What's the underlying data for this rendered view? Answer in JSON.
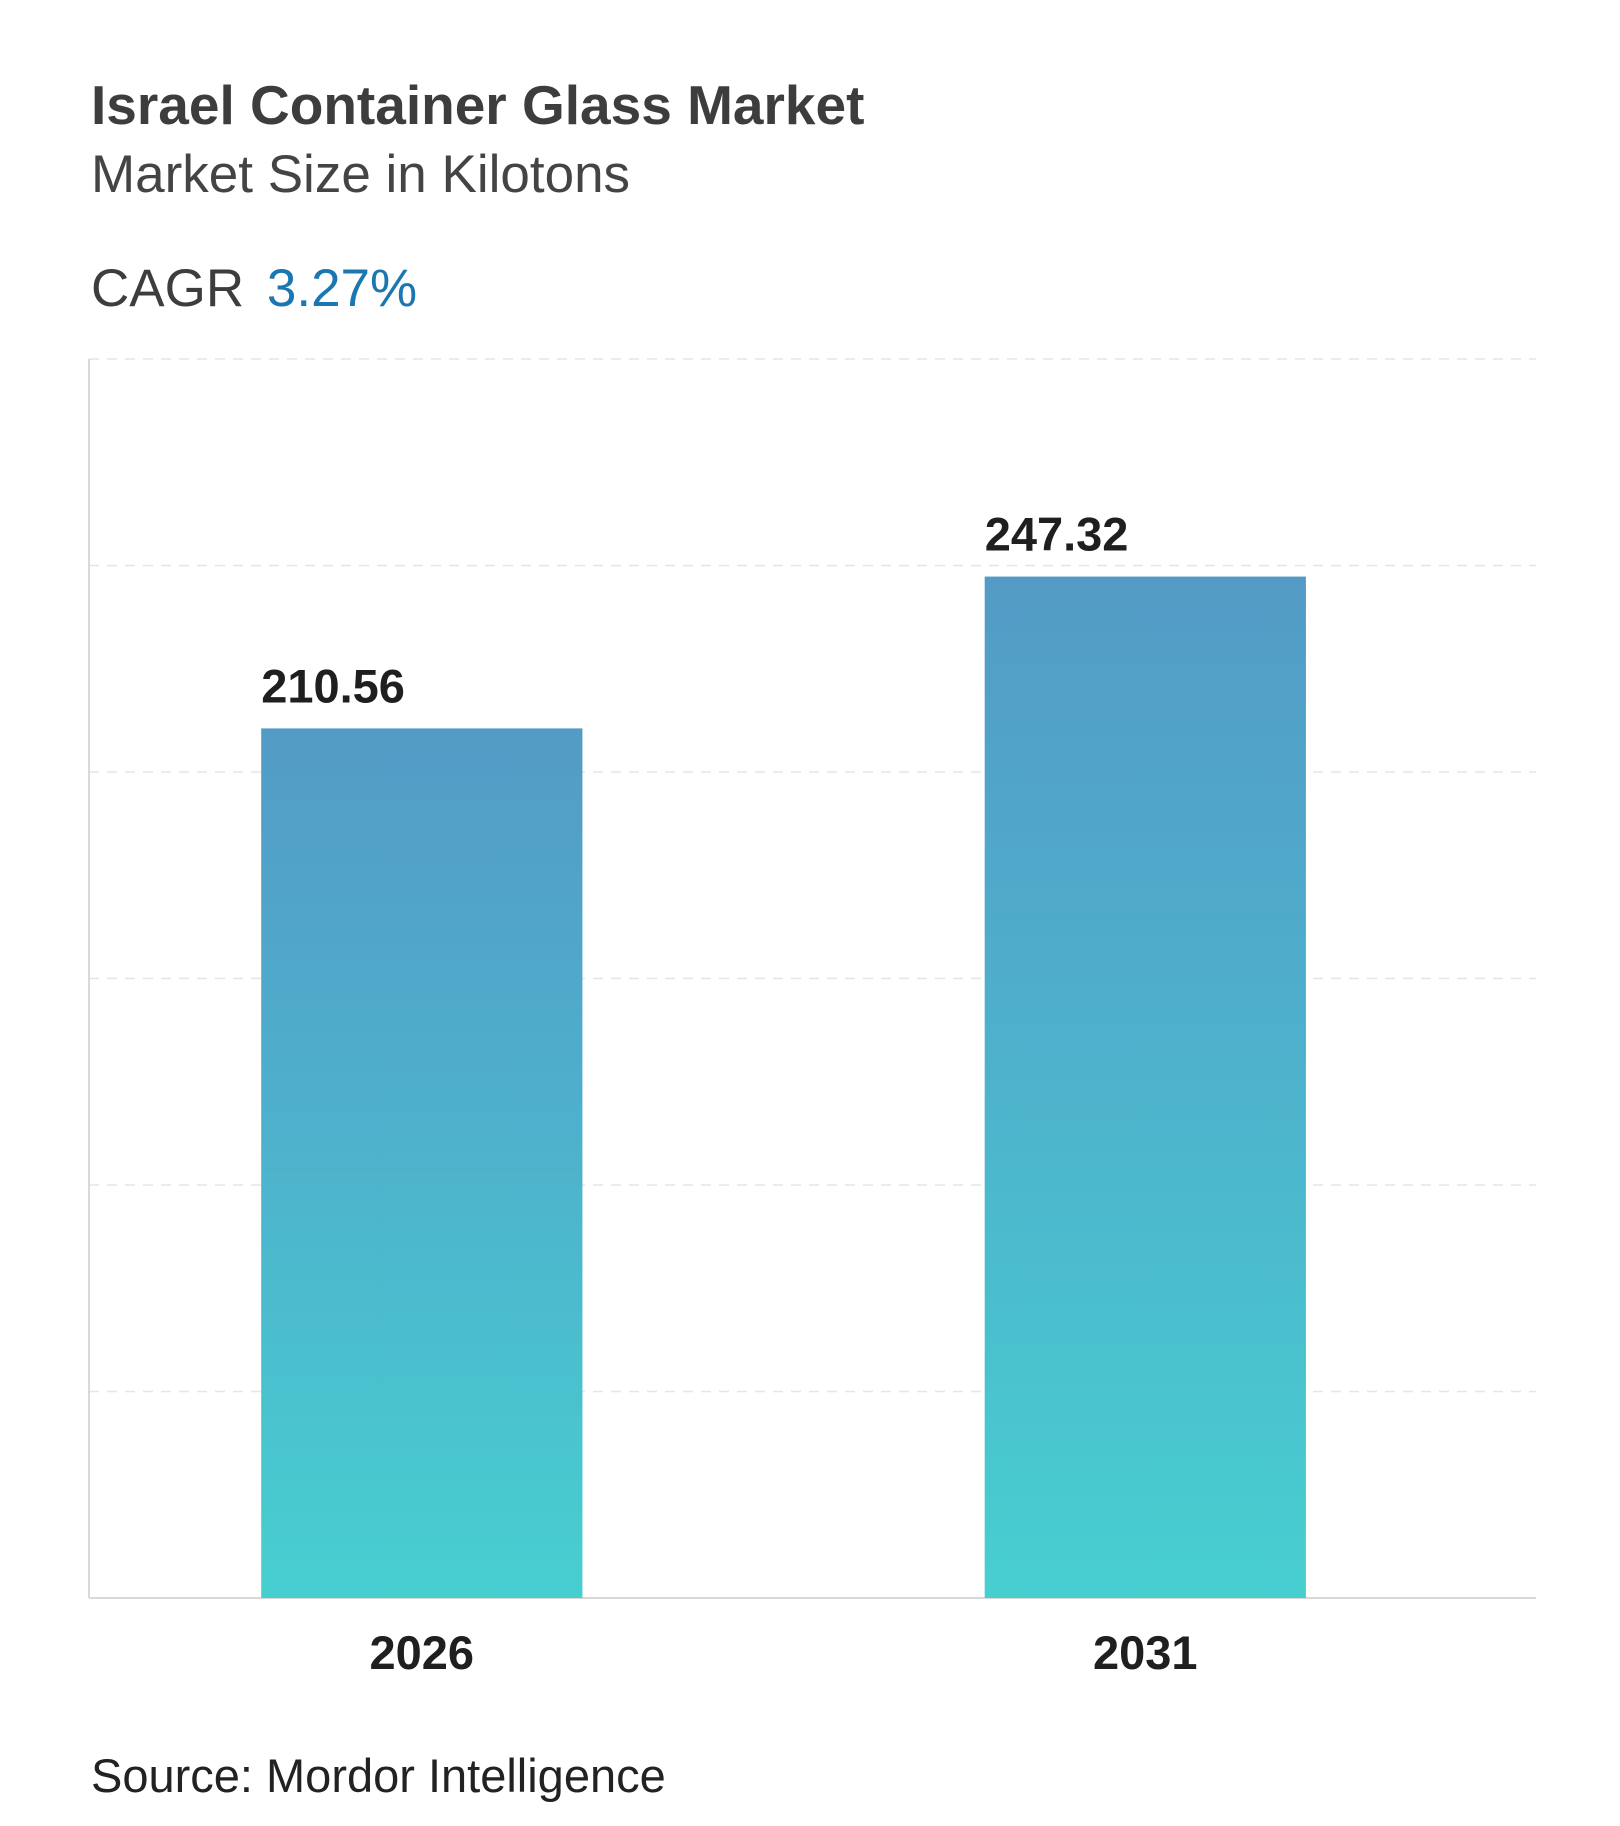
{
  "header": {
    "title": "Israel Container Glass Market",
    "subtitle": "Market Size in Kilotons"
  },
  "cagr": {
    "label": "CAGR",
    "value": "3.27%"
  },
  "colors": {
    "accent": "#1a77b2",
    "bar_top": "#539bc6",
    "bar_mid": "#4eb0cc",
    "bar_bottom": "#47cfd0",
    "gridline": "#e6e6e6",
    "axis": "#d9d9d9"
  },
  "chart_data": {
    "type": "bar",
    "categories": [
      "2026",
      "2031"
    ],
    "values": [
      210.56,
      247.32
    ],
    "value_labels": [
      "210.56",
      "247.32"
    ],
    "ylim": [
      0,
      300
    ],
    "grid": true,
    "legend": "none"
  },
  "source": "Source: Mordor Intelligence"
}
